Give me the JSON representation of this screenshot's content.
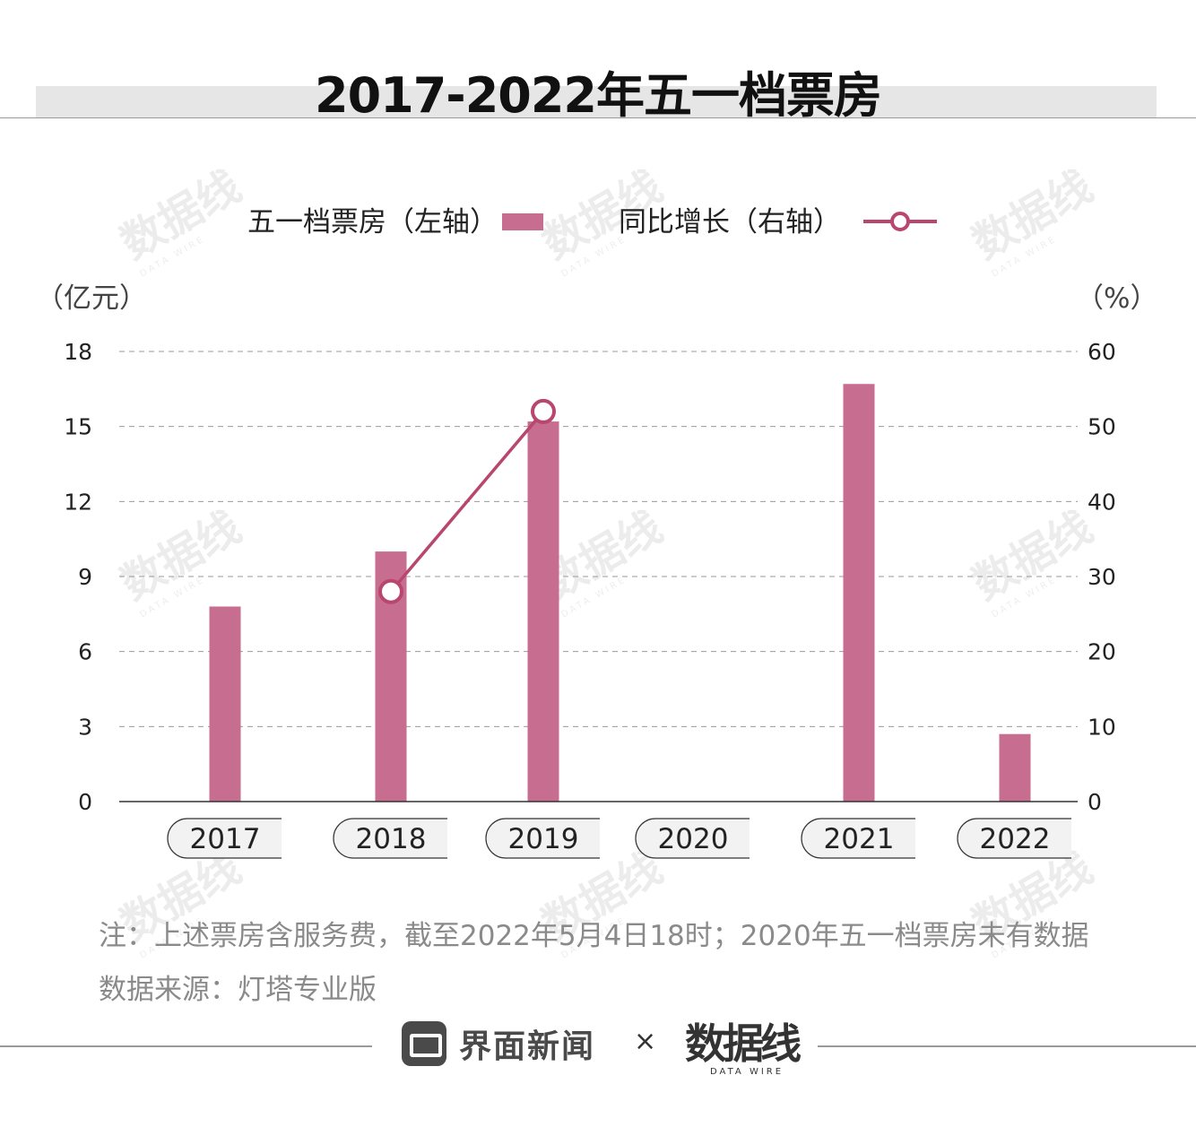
{
  "title": "2017-2022年五一档票房",
  "legend": {
    "bar_label": "五一档票房（左轴）",
    "line_label": "同比增长（右轴）"
  },
  "axes": {
    "left_unit": "（亿元）",
    "right_unit": "（%）"
  },
  "colors": {
    "bar": "#c76d90",
    "line": "#b8466f",
    "grid": "#999999"
  },
  "chart_data": {
    "type": "bar",
    "categories": [
      "2017",
      "2018",
      "2019",
      "2020",
      "2021",
      "2022"
    ],
    "series": [
      {
        "name": "五一档票房（左轴）",
        "axis": "left",
        "type": "bar",
        "values": [
          7.8,
          10.0,
          15.2,
          null,
          16.7,
          2.7
        ]
      },
      {
        "name": "同比增长（右轴）",
        "axis": "right",
        "type": "line",
        "values": [
          null,
          28,
          52,
          null,
          null,
          null
        ]
      }
    ],
    "left_axis": {
      "ticks": [
        0,
        3,
        6,
        9,
        12,
        15,
        18
      ],
      "ylim": [
        0,
        18
      ]
    },
    "right_axis": {
      "ticks": [
        0,
        10,
        20,
        30,
        40,
        50,
        60
      ],
      "ylim": [
        0,
        60
      ]
    },
    "grid": true,
    "legend_position": "top"
  },
  "notes": {
    "note": "注：上述票房含服务费，截至2022年5月4日18时；2020年五一档票房未有数据",
    "source": "数据来源：灯塔专业版"
  },
  "footer": {
    "brand": "界面新闻",
    "times": "×",
    "datawire_cn": "数据线",
    "datawire_en": "DATA WIRE"
  }
}
